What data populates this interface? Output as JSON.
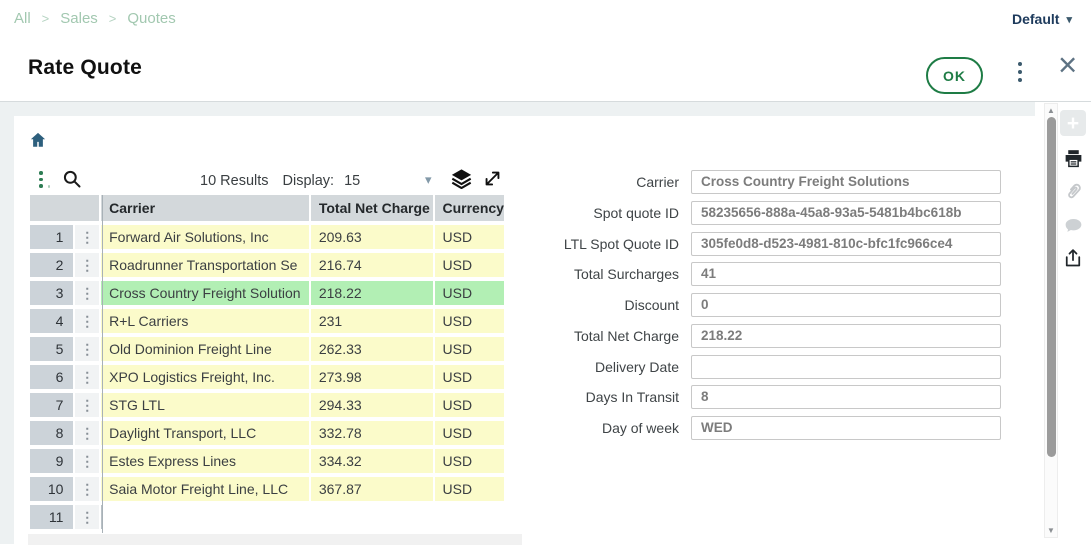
{
  "topbar": {
    "breadcrumb": [
      "All",
      "Sales",
      "Quotes"
    ],
    "separator": ">",
    "profile_label": "Default",
    "caret": "▾"
  },
  "header": {
    "title": "Rate Quote",
    "ok_label": "OK",
    "close_glyph": "×",
    "kebab_icon": "vertical-dots"
  },
  "grid": {
    "results_text": "10 Results",
    "display_label": "Display:",
    "display_value": "15",
    "display_caret": "▾",
    "columns": [
      "Carrier",
      "Total Net Charge",
      "Currency"
    ],
    "row_kebab_glyph": "⋮",
    "rows": [
      {
        "num": "1",
        "carrier": "Forward Air Solutions, Inc",
        "charge": "209.63",
        "currency": "USD"
      },
      {
        "num": "2",
        "carrier": "Roadrunner Transportation Se",
        "charge": "216.74",
        "currency": "USD"
      },
      {
        "num": "3",
        "carrier": "Cross Country Freight Solution",
        "charge": "218.22",
        "currency": "USD",
        "selected": true
      },
      {
        "num": "4",
        "carrier": "R+L Carriers",
        "charge": "231",
        "currency": "USD"
      },
      {
        "num": "5",
        "carrier": "Old Dominion Freight Line",
        "charge": "262.33",
        "currency": "USD"
      },
      {
        "num": "6",
        "carrier": "XPO Logistics Freight, Inc.",
        "charge": "273.98",
        "currency": "USD"
      },
      {
        "num": "7",
        "carrier": "STG LTL",
        "charge": "294.33",
        "currency": "USD"
      },
      {
        "num": "8",
        "carrier": "Daylight Transport, LLC",
        "charge": "332.78",
        "currency": "USD"
      },
      {
        "num": "9",
        "carrier": "Estes Express Lines",
        "charge": "334.32",
        "currency": "USD"
      },
      {
        "num": "10",
        "carrier": "Saia Motor Freight Line, LLC",
        "charge": "367.87",
        "currency": "USD"
      },
      {
        "num": "11",
        "carrier": "",
        "charge": "",
        "currency": "",
        "empty": true
      }
    ]
  },
  "form": {
    "fields": [
      {
        "label": "Carrier",
        "value": "Cross Country Freight Solutions"
      },
      {
        "label": "Spot quote ID",
        "value": "58235656-888a-45a8-93a5-5481b4bc618b"
      },
      {
        "label": "LTL Spot Quote ID",
        "value": "305fe0d8-d523-4981-810c-bfc1fc966ce4"
      },
      {
        "label": "Total Surcharges",
        "value": "41"
      },
      {
        "label": "Discount",
        "value": "0"
      },
      {
        "label": "Total Net Charge",
        "value": "218.22"
      },
      {
        "label": "Delivery Date",
        "value": ""
      },
      {
        "label": "Days In Transit",
        "value": "8"
      },
      {
        "label": "Day of week",
        "value": "WED"
      }
    ]
  },
  "rail_icons": [
    "add",
    "print",
    "attach",
    "comment",
    "share"
  ],
  "scrollbar": {
    "up_glyph": "▲",
    "down_glyph": "▼"
  },
  "colors": {
    "accent_green": "#1e7c45",
    "breadcrumb_green": "#a2c8b0",
    "navy": "#1d3a5c",
    "row_yellow": "#fbfbca",
    "row_selected_green": "#b2efb4",
    "grid_header_gray": "#d3d8db",
    "row_number_gray": "#ccd3d9",
    "home_icon_blue": "#2d5f7d"
  }
}
